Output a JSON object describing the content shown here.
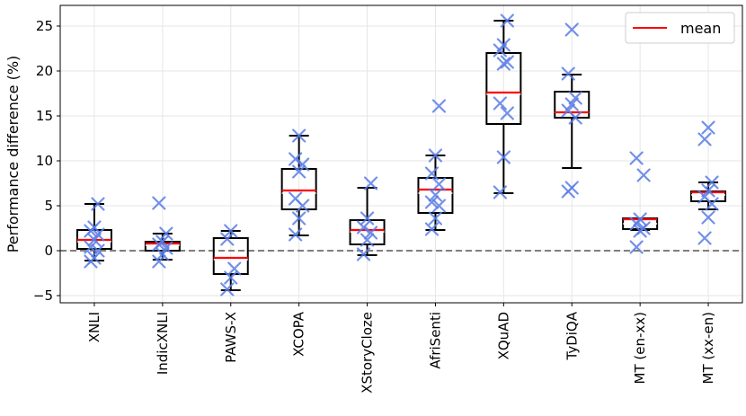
{
  "chart_data": {
    "type": "box",
    "title": "",
    "xlabel": "",
    "ylabel": "Performance difference (%)",
    "ylim": [
      -5.8,
      27.3
    ],
    "yticks": [
      -5,
      0,
      5,
      10,
      15,
      20,
      25
    ],
    "ytick_labels": [
      "−5",
      "0",
      "5",
      "10",
      "15",
      "20",
      "25"
    ],
    "grid": true,
    "zero_line": 0,
    "legend": {
      "position": "top-right",
      "entries": [
        {
          "label": "mean",
          "color": "#ff0000"
        }
      ]
    },
    "colors": {
      "box": "#000000",
      "mean": "#ff0000",
      "points": "#5a7de6",
      "grid": "#e6e6e6",
      "zero": "#7f7f7f"
    },
    "categories": [
      "XNLI",
      "IndicXNLI",
      "PAWS-X",
      "XCOPA",
      "XStoryCloze",
      "AfriSenti",
      "XQuAD",
      "TyDiQA",
      "MT (en-xx)",
      "MT (xx-en)"
    ],
    "boxes": [
      {
        "whislo": -1.1,
        "q1": 0.2,
        "med": 1.0,
        "mean": 1.2,
        "q3": 2.3,
        "whishi": 5.2,
        "points": [
          -1.2,
          -0.8,
          0.0,
          0.4,
          1.2,
          1.8,
          2.2,
          2.6,
          5.2
        ]
      },
      {
        "whislo": -1.0,
        "q1": 0.0,
        "med": 0.6,
        "mean": 0.8,
        "q3": 1.0,
        "whishi": 1.9,
        "points": [
          -1.2,
          -0.4,
          0.3,
          0.7,
          1.0,
          1.9,
          5.3
        ]
      },
      {
        "whislo": -4.4,
        "q1": -2.6,
        "med": -1.0,
        "mean": -0.8,
        "q3": 1.4,
        "whishi": 2.2,
        "points": [
          -4.3,
          -3.0,
          -2.0,
          1.3,
          2.2
        ]
      },
      {
        "whislo": 1.7,
        "q1": 4.6,
        "med": 6.4,
        "mean": 6.7,
        "q3": 9.1,
        "whishi": 12.8,
        "points": [
          1.8,
          3.6,
          5.0,
          5.8,
          8.8,
          9.6,
          10.2,
          12.8
        ]
      },
      {
        "whislo": -0.5,
        "q1": 0.7,
        "med": 2.1,
        "mean": 2.3,
        "q3": 3.4,
        "whishi": 7.0,
        "points": [
          -0.4,
          1.2,
          2.0,
          2.6,
          3.6,
          7.5
        ]
      },
      {
        "whislo": 2.3,
        "q1": 4.2,
        "med": 6.4,
        "mean": 6.8,
        "q3": 8.1,
        "whishi": 10.6,
        "points": [
          2.4,
          3.6,
          5.0,
          5.4,
          6.2,
          7.4,
          8.6,
          10.6,
          16.1
        ]
      },
      {
        "whislo": 6.4,
        "q1": 14.1,
        "med": 17.4,
        "mean": 17.6,
        "q3": 22.0,
        "whishi": 25.6,
        "points": [
          6.5,
          10.4,
          15.3,
          16.4,
          20.8,
          21.0,
          22.3,
          22.9,
          25.6
        ]
      },
      {
        "whislo": 9.2,
        "q1": 14.8,
        "med": 15.4,
        "mean": 15.4,
        "q3": 17.7,
        "whishi": 19.6,
        "points": [
          6.6,
          7.0,
          14.8,
          15.6,
          16.3,
          17.0,
          19.7,
          24.6
        ]
      },
      {
        "whislo": 2.3,
        "q1": 2.4,
        "med": 3.0,
        "mean": 3.5,
        "q3": 3.6,
        "whishi": 3.6,
        "points": [
          0.4,
          2.2,
          2.5,
          3.0,
          3.5,
          8.4,
          10.3
        ]
      },
      {
        "whislo": 4.6,
        "q1": 5.5,
        "med": 6.2,
        "mean": 6.5,
        "q3": 6.6,
        "whishi": 7.6,
        "points": [
          1.4,
          3.7,
          5.2,
          6.0,
          6.7,
          7.6,
          12.4,
          13.7
        ]
      }
    ]
  }
}
